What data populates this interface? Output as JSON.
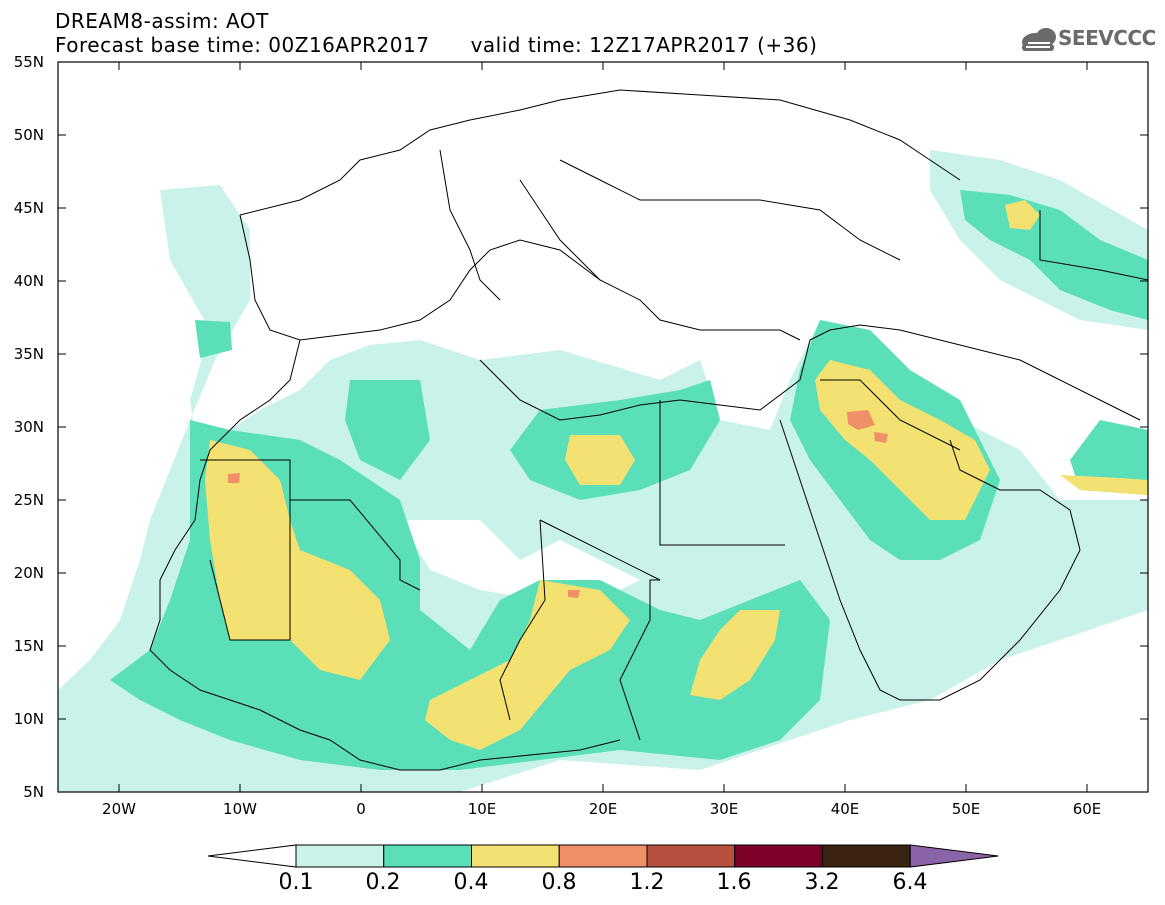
{
  "title": {
    "line1": "DREAM8-assim: AOT",
    "line2": "Forecast base time: 00Z16APR2017      valid time: 12Z17APR2017 (+36)"
  },
  "logo": {
    "text": "SEEVCCC",
    "icon": "cloud-icon"
  },
  "map": {
    "lat_ticks": [
      "55N",
      "50N",
      "45N",
      "40N",
      "35N",
      "30N",
      "25N",
      "20N",
      "15N",
      "10N",
      "5N"
    ],
    "lon_ticks": [
      "20W",
      "10W",
      "0",
      "10E",
      "20E",
      "30E",
      "40E",
      "50E",
      "60E"
    ],
    "extent": {
      "lon": [
        -25,
        65
      ],
      "lat": [
        5,
        55
      ]
    }
  },
  "legend": {
    "labels": [
      "0.1",
      "0.2",
      "0.4",
      "0.8",
      "1.2",
      "1.6",
      "3.2",
      "6.4"
    ],
    "colors": [
      "#ffffff",
      "#c8f2ea",
      "#5adfb8",
      "#f3e272",
      "#ef9068",
      "#b85040",
      "#7b0028",
      "#3c2412",
      "#8a64a8"
    ]
  }
}
